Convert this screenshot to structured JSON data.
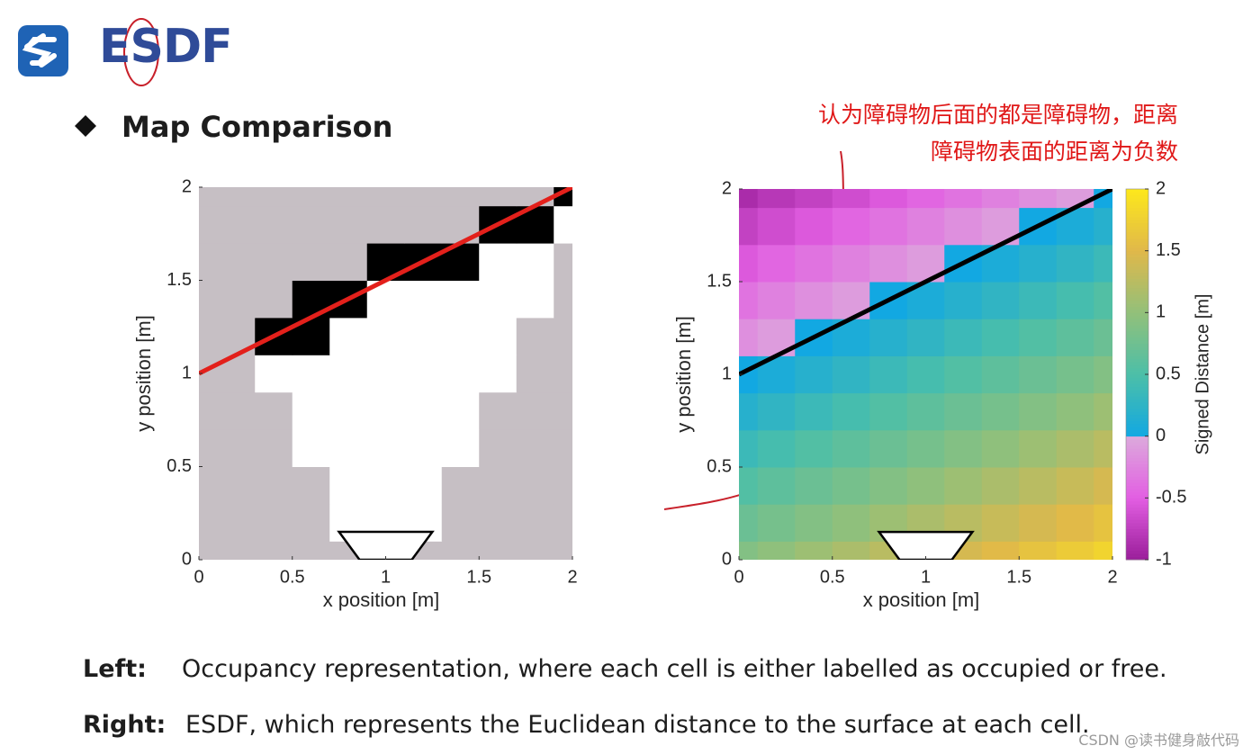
{
  "header": {
    "title": "ESDF"
  },
  "heading": "Map Comparison",
  "annotation": [
    "认为障碍物后面的都是障碍物，距离",
    "障碍物表面的距离为负数"
  ],
  "chart_data": [
    {
      "type": "occupancy",
      "xlabel": "x position [m]",
      "ylabel": "y position [m]",
      "xlim": [
        0,
        2
      ],
      "ylim": [
        0,
        2
      ],
      "xticks": [
        0,
        0.5,
        1,
        1.5,
        2
      ],
      "yticks": [
        0,
        0.5,
        1,
        1.5,
        2
      ],
      "x": [
        0,
        0.2,
        0.4,
        0.6,
        0.8,
        1,
        1.2,
        1.4,
        1.6,
        1.8,
        2
      ],
      "y": [
        0,
        0.2,
        0.4,
        0.6,
        0.8,
        1,
        1.2,
        1.4,
        1.6,
        1.8,
        2
      ],
      "values": [
        [
          -1,
          -1,
          -1,
          -1,
          -1,
          -1,
          -1,
          -1,
          -1,
          -1,
          -1
        ],
        [
          -1,
          -1,
          -1,
          -1,
          0,
          0,
          0,
          -1,
          -1,
          -1,
          -1
        ],
        [
          -1,
          -1,
          -1,
          -1,
          0,
          0,
          0,
          -1,
          -1,
          -1,
          -1
        ],
        [
          -1,
          -1,
          -1,
          0,
          0,
          0,
          0,
          0,
          -1,
          -1,
          -1
        ],
        [
          -1,
          -1,
          -1,
          0,
          0,
          0,
          0,
          0,
          -1,
          -1,
          -1
        ],
        [
          -1,
          -1,
          0,
          0,
          0,
          0,
          0,
          0,
          0,
          -1,
          -1
        ],
        [
          -1,
          -1,
          1,
          1,
          0,
          0,
          0,
          0,
          0,
          -1,
          -1
        ],
        [
          -1,
          -1,
          -1,
          1,
          1,
          0,
          0,
          0,
          0,
          0,
          -1
        ],
        [
          -1,
          -1,
          -1,
          -1,
          -1,
          1,
          1,
          1,
          0,
          0,
          -1
        ],
        [
          -1,
          -1,
          -1,
          -1,
          -1,
          -1,
          -1,
          -1,
          1,
          1,
          0
        ],
        [
          -1,
          -1,
          -1,
          -1,
          -1,
          -1,
          -1,
          -1,
          -1,
          -1,
          1
        ]
      ],
      "cell_colors": {
        "-1": "#c6bfc4",
        "0": "#ffffff",
        "1": "#000000"
      },
      "line": {
        "x": [
          0,
          2
        ],
        "y": [
          1,
          2
        ],
        "color": "#e3201b"
      },
      "camera": {
        "x": [
          0.75,
          1.25,
          1.14,
          0.86
        ],
        "y": [
          0.15,
          0.15,
          0,
          0
        ]
      }
    },
    {
      "type": "heatmap",
      "xlabel": "x position [m]",
      "ylabel": "y position [m]",
      "xlim": [
        0,
        2
      ],
      "ylim": [
        0,
        2
      ],
      "xticks": [
        0,
        0.5,
        1,
        1.5,
        2
      ],
      "yticks": [
        0,
        0.5,
        1,
        1.5,
        2
      ],
      "x": [
        0,
        0.2,
        0.4,
        0.6,
        0.8,
        1,
        1.2,
        1.4,
        1.6,
        1.8,
        2
      ],
      "y": [
        0,
        0.2,
        0.4,
        0.6,
        0.8,
        1,
        1.2,
        1.4,
        1.6,
        1.8,
        2
      ],
      "values": [
        [
          0.89,
          0.98,
          1.07,
          1.16,
          1.25,
          1.34,
          1.43,
          1.52,
          1.61,
          1.7,
          1.79
        ],
        [
          0.72,
          0.8,
          0.89,
          0.98,
          1.07,
          1.16,
          1.25,
          1.34,
          1.43,
          1.52,
          1.61
        ],
        [
          0.54,
          0.63,
          0.72,
          0.8,
          0.89,
          0.98,
          1.07,
          1.16,
          1.25,
          1.34,
          1.43
        ],
        [
          0.36,
          0.45,
          0.54,
          0.63,
          0.72,
          0.8,
          0.89,
          0.98,
          1.07,
          1.16,
          1.25
        ],
        [
          0.18,
          0.27,
          0.36,
          0.45,
          0.54,
          0.63,
          0.72,
          0.8,
          0.89,
          0.98,
          1.07
        ],
        [
          0,
          0.09,
          0.18,
          0.27,
          0.36,
          0.45,
          0.54,
          0.63,
          0.72,
          0.8,
          0.89
        ],
        [
          -0.18,
          -0.09,
          0,
          0.09,
          0.18,
          0.27,
          0.36,
          0.45,
          0.54,
          0.63,
          0.72
        ],
        [
          -0.36,
          -0.27,
          -0.18,
          -0.09,
          0,
          0.09,
          0.18,
          0.27,
          0.36,
          0.45,
          0.54
        ],
        [
          -0.54,
          -0.45,
          -0.36,
          -0.27,
          -0.18,
          -0.09,
          0,
          0.09,
          0.18,
          0.27,
          0.36
        ],
        [
          -0.72,
          -0.63,
          -0.54,
          -0.45,
          -0.36,
          -0.27,
          -0.18,
          -0.09,
          0,
          0.09,
          0.18
        ],
        [
          -0.89,
          -0.8,
          -0.72,
          -0.63,
          -0.54,
          -0.45,
          -0.36,
          -0.27,
          -0.18,
          -0.09,
          0
        ]
      ],
      "clim": [
        -1,
        2
      ],
      "colormap": {
        "negative": [
          "#9a1e9a",
          "#e25ee2",
          "#dcaadc"
        ],
        "positive": [
          "#12a8e2",
          "#4cbfa8",
          "#92c07a",
          "#e0b84a",
          "#fde81c"
        ]
      },
      "colorbar_label": "Signed Distance [m]",
      "colorbar_ticks": [
        -1,
        -0.5,
        0,
        0.5,
        1,
        1.5,
        2
      ],
      "line": {
        "x": [
          0,
          2
        ],
        "y": [
          1,
          2
        ],
        "color": "#000000"
      },
      "camera": {
        "x": [
          0.75,
          1.25,
          1.14,
          0.86
        ],
        "y": [
          0.15,
          0.15,
          0,
          0
        ]
      }
    }
  ],
  "captions": [
    {
      "label": "Left:",
      "text": "Occupancy representation,  where each cell is either labelled as occupied or free."
    },
    {
      "label": "Right:",
      "text": "ESDF, which represents the Euclidean distance to the surface at each cell."
    }
  ],
  "watermark": "CSDN @读书健身敲代码"
}
